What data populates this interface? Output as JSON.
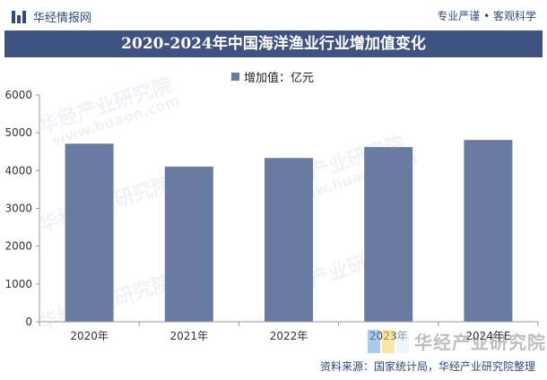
{
  "header": {
    "brand": "华经情报网",
    "tagline": "专业严谨 • 客观科学"
  },
  "title": "2020-2024年中国海洋渔业行业增加值变化",
  "watermark": {
    "text": "华经产业研究院",
    "url": "www.huaon.com"
  },
  "source": "资料来源：国家统计局，华经产业研究院整理",
  "colors": {
    "title_bg": "#3e5382",
    "bar": "#6a7ba3",
    "brand": "#2f4a7c"
  },
  "chart_data": {
    "type": "bar",
    "title": "2020-2024年中国海洋渔业行业增加值变化",
    "categories": [
      "2020年",
      "2021年",
      "2022年",
      "2023年",
      "2024年E"
    ],
    "series": [
      {
        "name": "增加值：亿元",
        "values": [
          4712,
          4106,
          4334,
          4622,
          4810
        ]
      }
    ],
    "ylim": [
      0,
      6000
    ],
    "yticks": [
      0,
      1000,
      2000,
      3000,
      4000,
      5000,
      6000
    ],
    "grid": false,
    "legend": "top-center"
  }
}
